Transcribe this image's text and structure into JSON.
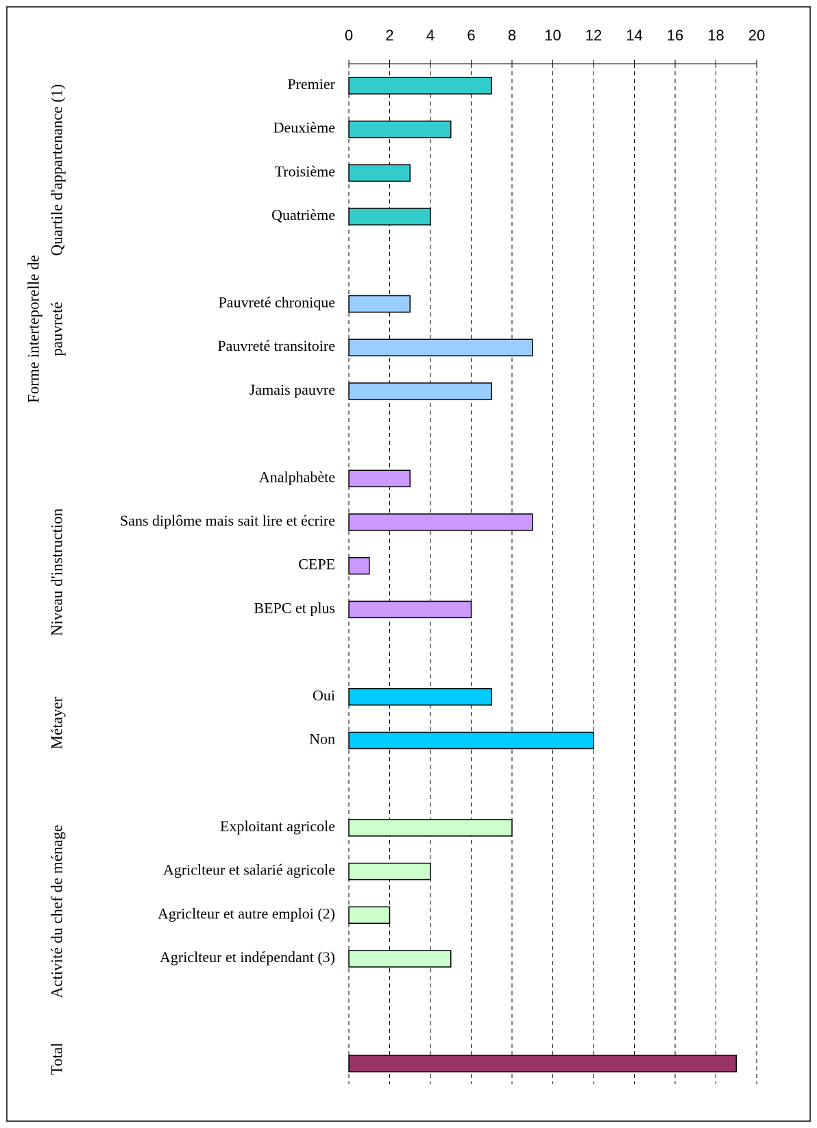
{
  "chart_data": {
    "type": "bar",
    "orientation": "horizontal",
    "xlim": [
      0,
      20
    ],
    "xticks": [
      0,
      2,
      4,
      6,
      8,
      10,
      12,
      14,
      16,
      18,
      20
    ],
    "grid": true,
    "groups": [
      {
        "label": [
          "Quartile d'appartenance (1)"
        ],
        "color": "#33cccc",
        "categories": [
          "Premier",
          "Deuxième",
          "Troisième",
          "Quatrième"
        ],
        "values": [
          7,
          5,
          3,
          4
        ]
      },
      {
        "label": [
          "Forme interteporelle de",
          "pauvreté"
        ],
        "color": "#99ccff",
        "categories": [
          "Pauvreté chronique",
          "Pauvreté transitoire",
          "Jamais pauvre"
        ],
        "values": [
          3,
          9,
          7
        ]
      },
      {
        "label": [
          "Niveau d'instruction"
        ],
        "color": "#cc99ff",
        "categories": [
          "Analphabète",
          "Sans diplôme mais sait lire et écrire",
          "CEPE",
          "BEPC et plus"
        ],
        "values": [
          3,
          9,
          1,
          6
        ]
      },
      {
        "label": [
          "Métayer"
        ],
        "color": "#00ccff",
        "categories": [
          "Oui",
          "Non"
        ],
        "values": [
          7,
          12
        ]
      },
      {
        "label": [
          "Activité du chef de ménage"
        ],
        "color": "#ccffcc",
        "categories": [
          "Exploitant agricole",
          "Agriclteur et salarié agricole",
          "Agriclteur et autre emploi (2)",
          "Agriclteur et  indépendant (3)"
        ],
        "values": [
          8,
          4,
          2,
          5
        ]
      },
      {
        "label": [
          "Total"
        ],
        "color": "#993366",
        "categories": [
          null
        ],
        "values": [
          19
        ]
      }
    ]
  }
}
